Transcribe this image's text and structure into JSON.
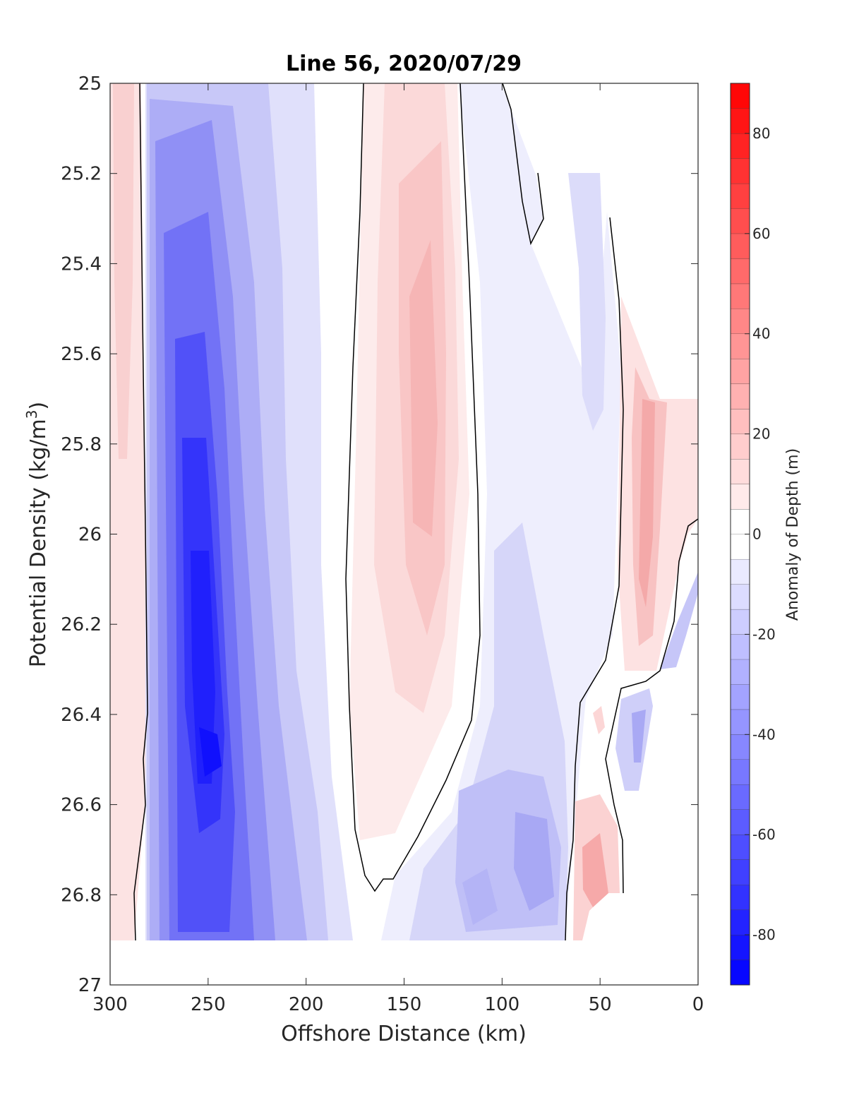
{
  "chart_data": {
    "type": "heatmap",
    "subtype": "filled-contour",
    "title": "Line 56, 2020/07/29",
    "xlabel": "Offshore Distance (km)",
    "ylabel_main": "Potential Density (kg/m",
    "ylabel_sup": "3",
    "ylabel_close": ")",
    "xlim": [
      300,
      0
    ],
    "x_reversed": true,
    "ylim": [
      25,
      27
    ],
    "y_reversed": true,
    "xticks": [
      "300",
      "250",
      "200",
      "150",
      "100",
      "50",
      "0"
    ],
    "yticks": [
      "25",
      "25.2",
      "25.4",
      "25.6",
      "25.8",
      "26",
      "26.2",
      "26.4",
      "26.6",
      "26.8",
      "27"
    ],
    "colorbar": {
      "label": "Anomaly of Depth (m)",
      "range": [
        -90,
        90
      ],
      "level_step": 5,
      "ticks": [
        "80",
        "60",
        "40",
        "20",
        "0",
        "-20",
        "-40",
        "-60",
        "-80"
      ],
      "colormap": "blue-white-red",
      "neg_color": "#0000ff",
      "pos_color": "#ff0000",
      "zero_color": "#ffffff"
    },
    "data_coverage": {
      "density_max": 26.9
    },
    "zero_contour_color": "#000000",
    "features": [
      {
        "x": 250,
        "y": 26.5,
        "value": -68
      },
      {
        "x": 250,
        "y": 26.0,
        "value": -60
      },
      {
        "x": 140,
        "y": 25.9,
        "value": 22
      },
      {
        "x": 295,
        "y": 25.5,
        "value": 12
      },
      {
        "x": 35,
        "y": 26.0,
        "value": 18
      },
      {
        "x": 50,
        "y": 26.75,
        "value": 20
      },
      {
        "x": 85,
        "y": 26.7,
        "value": -28
      },
      {
        "x": 55,
        "y": 25.6,
        "value": -12
      },
      {
        "x": 30,
        "y": 26.5,
        "value": -25
      }
    ]
  }
}
